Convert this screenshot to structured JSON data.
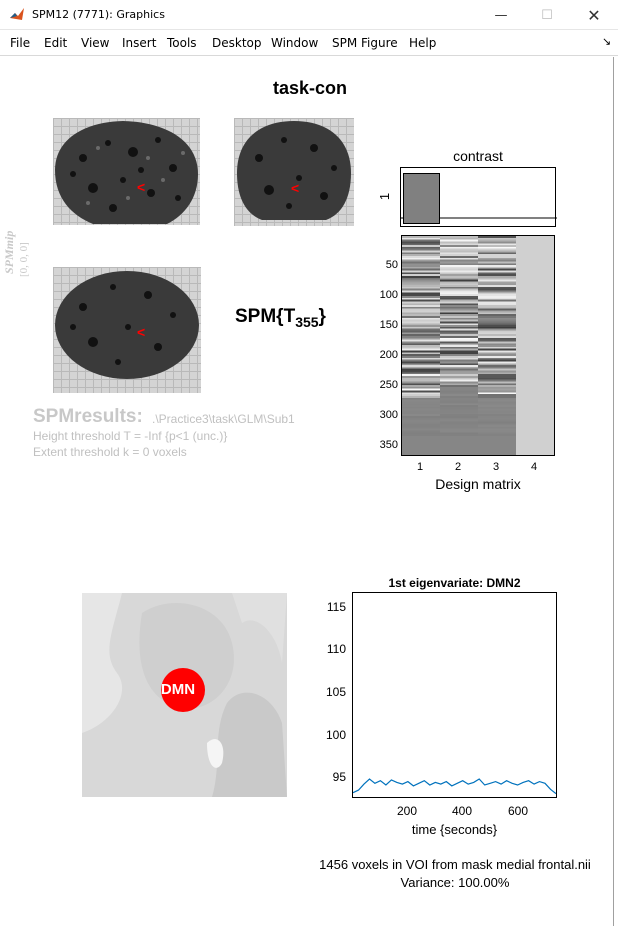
{
  "window": {
    "title": "SPM12 (7771): Graphics",
    "minimize_glyph": "—",
    "maximize_glyph": "☐",
    "close_glyph": "✕"
  },
  "menu": {
    "items": [
      "File",
      "Edit",
      "View",
      "Insert",
      "Tools",
      "Desktop",
      "Window",
      "SPM Figure",
      "Help"
    ],
    "dock_arrow": "↘"
  },
  "figure": {
    "title": "task-con",
    "spm_logo": "SPMmip",
    "coords": "[0, 0, 0]",
    "stat_main": "SPM{T",
    "stat_sub": "355",
    "stat_close": "}",
    "marker_glyph": "<",
    "marker_color": "#ff0000"
  },
  "results": {
    "title": "SPMresults:",
    "path": ".\\Practice3\\task\\GLM\\Sub1",
    "height_threshold": "Height threshold T = -Inf  {p<1 (unc.)}",
    "extent_threshold": "Extent threshold k = 0 voxels"
  },
  "contrast": {
    "title": "contrast",
    "ylabel": "1",
    "weights": [
      1,
      0,
      0,
      0
    ]
  },
  "design_matrix": {
    "xlabel": "Design matrix",
    "columns": 4,
    "rows": 360,
    "yticks": [
      "50",
      "100",
      "150",
      "200",
      "250",
      "300",
      "350"
    ],
    "xticks": [
      "1",
      "2",
      "3",
      "4"
    ],
    "constant_color": "#d0d0d0"
  },
  "roi": {
    "label": "DMN",
    "color": "#ff0000"
  },
  "chart_data": {
    "type": "line",
    "title": "1st eigenvariate: DMN2",
    "xlabel": "time {seconds}",
    "ylabel": "",
    "xlim": [
      0,
      740
    ],
    "ylim": [
      92.7,
      116.5
    ],
    "xticks": [
      "200",
      "400",
      "600"
    ],
    "yticks": [
      "95",
      "100",
      "105",
      "110",
      "115"
    ],
    "series": [
      {
        "color": "#0072bd",
        "x": [
          0,
          20,
          40,
          60,
          80,
          100,
          120,
          140,
          160,
          180,
          200,
          220,
          240,
          260,
          280,
          300,
          320,
          340,
          360,
          380,
          400,
          420,
          440,
          460,
          480,
          500,
          520,
          540,
          560,
          580,
          600,
          620,
          640,
          660,
          680,
          700,
          720,
          740
        ],
        "values": [
          93.2,
          93.5,
          94.2,
          94.8,
          94.3,
          94.6,
          94.1,
          94.7,
          94.4,
          94.2,
          94.5,
          94.0,
          94.3,
          94.6,
          94.1,
          94.4,
          94.2,
          94.5,
          94.0,
          94.3,
          94.6,
          94.2,
          94.4,
          94.8,
          94.1,
          94.3,
          94.5,
          94.2,
          94.6,
          94.3,
          94.1,
          94.4,
          94.6,
          94.2,
          94.5,
          94.3,
          93.6,
          93.1
        ]
      }
    ]
  },
  "voi_info": {
    "line1": "1456 voxels in VOI from mask medial frontal.nii",
    "line2": "Variance: 100.00%"
  }
}
